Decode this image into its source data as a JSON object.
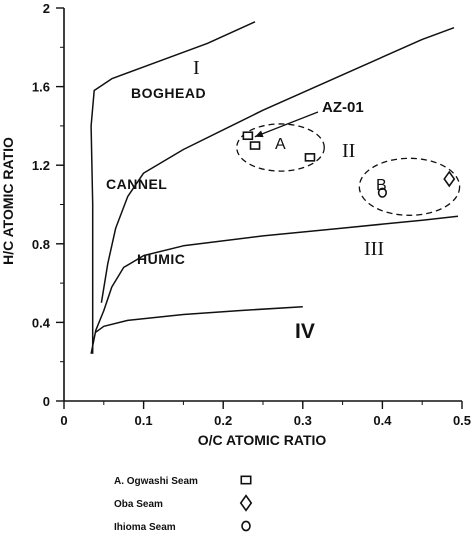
{
  "chart_data": {
    "type": "scatter",
    "xlabel": "O/C ATOMIC RATIO",
    "ylabel": "H/C ATOMIC RATIO",
    "xlim": [
      0,
      0.5
    ],
    "ylim": [
      0,
      2
    ],
    "x_ticks": [
      "0",
      "0.1",
      "0.2",
      "0.3",
      "0.4",
      "0.5"
    ],
    "y_ticks": [
      "0",
      "0.4",
      "0.8",
      "1.2",
      "1.6",
      "2"
    ],
    "grid": false,
    "boundary_curves": [
      {
        "label": "BOGHEAD",
        "points": [
          [
            0.036,
            0.24
          ],
          [
            0.036,
            1.0
          ],
          [
            0.034,
            1.4
          ],
          [
            0.038,
            1.58
          ],
          [
            0.06,
            1.64
          ],
          [
            0.12,
            1.73
          ],
          [
            0.18,
            1.82
          ],
          [
            0.24,
            1.93
          ]
        ]
      },
      {
        "label": "CANNEL",
        "points": [
          [
            0.047,
            0.5
          ],
          [
            0.055,
            0.7
          ],
          [
            0.065,
            0.88
          ],
          [
            0.08,
            1.04
          ],
          [
            0.1,
            1.16
          ],
          [
            0.15,
            1.28
          ],
          [
            0.25,
            1.48
          ],
          [
            0.35,
            1.66
          ],
          [
            0.45,
            1.84
          ],
          [
            0.49,
            1.9
          ]
        ]
      },
      {
        "label": "HUMIC",
        "points": [
          [
            0.034,
            0.24
          ],
          [
            0.04,
            0.36
          ],
          [
            0.05,
            0.46
          ],
          [
            0.06,
            0.58
          ],
          [
            0.075,
            0.68
          ],
          [
            0.1,
            0.74
          ],
          [
            0.15,
            0.79
          ],
          [
            0.25,
            0.84
          ],
          [
            0.35,
            0.88
          ],
          [
            0.45,
            0.92
          ],
          [
            0.495,
            0.94
          ]
        ]
      },
      {
        "label": "",
        "points": [
          [
            0.04,
            0.35
          ],
          [
            0.05,
            0.38
          ],
          [
            0.08,
            0.41
          ],
          [
            0.15,
            0.44
          ],
          [
            0.22,
            0.46
          ],
          [
            0.3,
            0.48
          ]
        ]
      }
    ],
    "type_labels": [
      "I",
      "II",
      "III",
      "IV"
    ],
    "series": [
      {
        "name": "A. Ogwashi Seam",
        "marker": "square",
        "x": [
          0.231,
          0.24,
          0.309
        ],
        "y": [
          1.35,
          1.3,
          1.24
        ]
      },
      {
        "name": "Oba Seam",
        "marker": "diamond",
        "x": [
          0.484
        ],
        "y": [
          1.13
        ]
      },
      {
        "name": "Ihioma Seam",
        "marker": "circle",
        "x": [
          0.4
        ],
        "y": [
          1.06
        ]
      }
    ],
    "groups": [
      {
        "label": "A",
        "center": [
          0.272,
          1.29
        ],
        "radius": [
          0.055,
          0.12
        ]
      },
      {
        "label": "B",
        "center": [
          0.434,
          1.09
        ],
        "radius": [
          0.063,
          0.145
        ]
      }
    ],
    "annotations": [
      {
        "text": "AZ-01",
        "x": 0.325,
        "y": 1.47,
        "points_to": [
          0.231,
          1.35
        ]
      }
    ]
  }
}
